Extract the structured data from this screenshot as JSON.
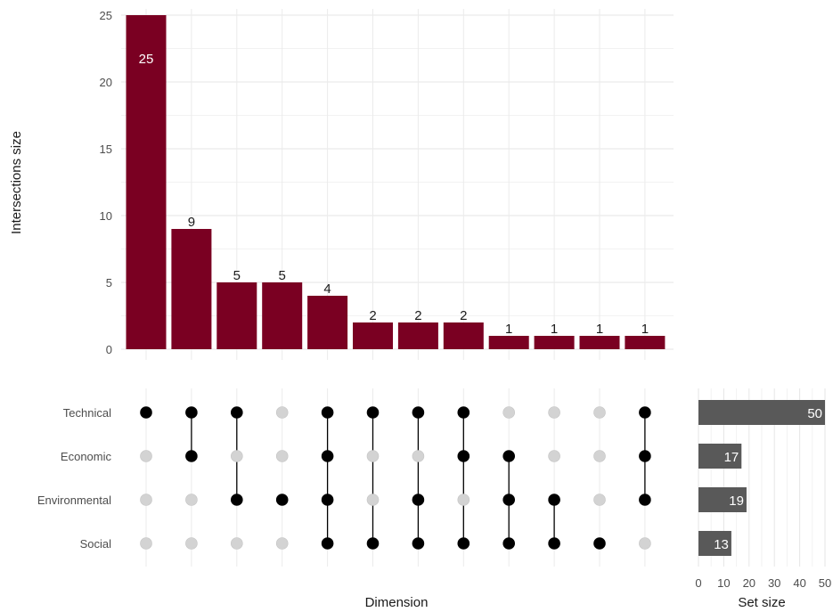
{
  "chart_data": {
    "type": "bar",
    "subtype": "upset",
    "intersections": {
      "ylabel": "Intersections size",
      "xlabel": "Dimension",
      "ylim": [
        0,
        25
      ],
      "yticks": [
        "0",
        "5",
        "10",
        "15",
        "20",
        "25"
      ],
      "values": [
        25,
        9,
        5,
        5,
        4,
        2,
        2,
        2,
        1,
        1,
        1,
        1
      ],
      "bar_color": "#7a0022"
    },
    "sets": [
      "Technical",
      "Economic",
      "Environmental",
      "Social"
    ],
    "matrix": [
      [
        1,
        0,
        0,
        0
      ],
      [
        1,
        1,
        0,
        0
      ],
      [
        1,
        0,
        1,
        0
      ],
      [
        0,
        0,
        1,
        0
      ],
      [
        1,
        1,
        1,
        1
      ],
      [
        1,
        0,
        0,
        1
      ],
      [
        1,
        0,
        1,
        1
      ],
      [
        1,
        1,
        0,
        1
      ],
      [
        0,
        1,
        1,
        1
      ],
      [
        0,
        0,
        1,
        1
      ],
      [
        0,
        0,
        0,
        1
      ],
      [
        1,
        1,
        1,
        0
      ]
    ],
    "set_size": {
      "xlabel": "Set size",
      "values": [
        50,
        17,
        19,
        13
      ],
      "labels": [
        "50",
        "17",
        "19",
        "13"
      ],
      "xlim": [
        0,
        50
      ],
      "xticks": [
        "0",
        "10",
        "20",
        "30",
        "40",
        "50"
      ],
      "bar_color": "#595959"
    },
    "grid": true,
    "dot_active_color": "#000000",
    "dot_inactive_color": "#d3d3d3"
  }
}
